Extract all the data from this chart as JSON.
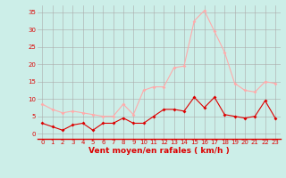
{
  "hours": [
    0,
    1,
    2,
    3,
    4,
    5,
    6,
    7,
    8,
    9,
    10,
    11,
    12,
    13,
    14,
    15,
    16,
    17,
    18,
    19,
    20,
    21,
    22,
    23
  ],
  "wind_avg": [
    3,
    2,
    1,
    2.5,
    3,
    1,
    3,
    3,
    4.5,
    3,
    3,
    5,
    7,
    7,
    6.5,
    10.5,
    7.5,
    10.5,
    5.5,
    5,
    4.5,
    5,
    9.5,
    4.5
  ],
  "wind_gust": [
    8.5,
    7,
    6,
    6.5,
    6,
    5.5,
    5,
    5,
    8.5,
    5.5,
    12.5,
    13.5,
    13.5,
    19,
    19.5,
    32.5,
    35.5,
    29.5,
    23.5,
    14.5,
    12.5,
    12,
    15,
    14.5
  ],
  "avg_color": "#dd0000",
  "gust_color": "#ffaaaa",
  "bg_color": "#cceee8",
  "grid_color": "#aaaaaa",
  "xlabel": "Vent moyen/en rafales ( km/h )",
  "xlabel_color": "#dd0000",
  "yticks": [
    0,
    5,
    10,
    15,
    20,
    25,
    30,
    35
  ],
  "ylim": [
    -1.5,
    37
  ],
  "xlim": [
    -0.5,
    23.5
  ],
  "tick_fontsize": 5,
  "xlabel_fontsize": 6.5,
  "marker_size": 2.0,
  "linewidth": 0.8
}
